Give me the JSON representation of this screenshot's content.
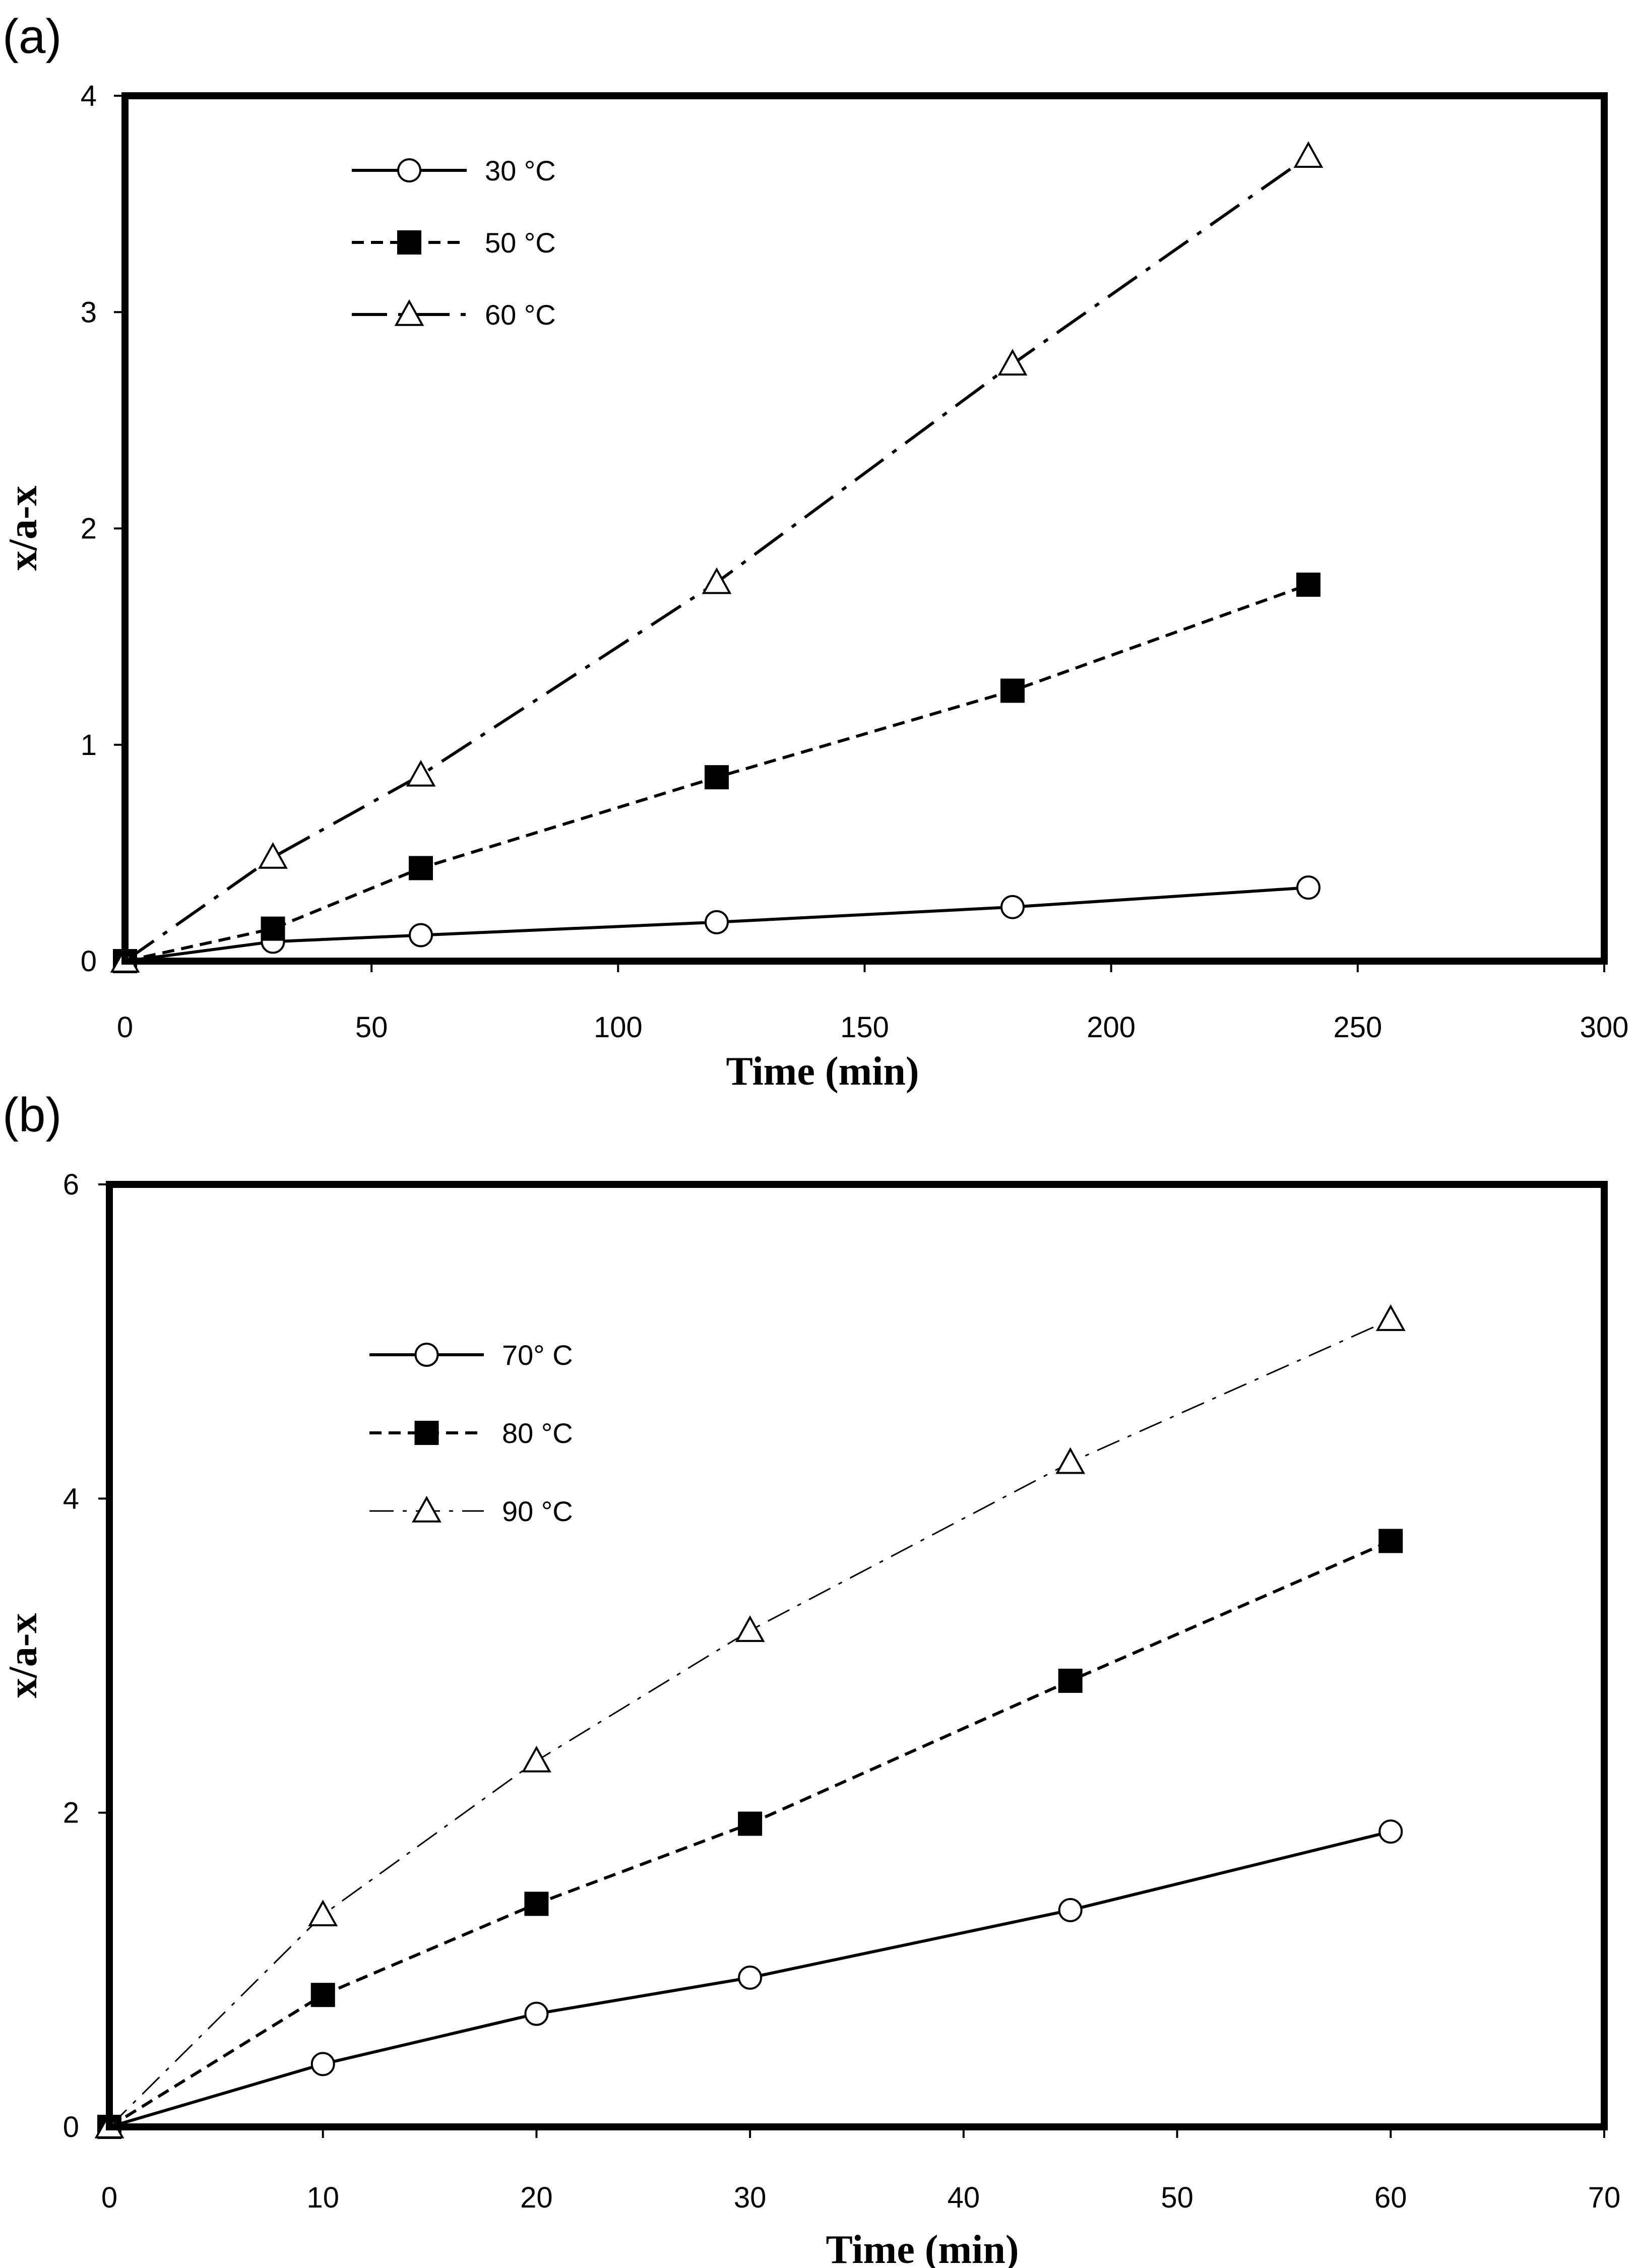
{
  "chart_data": [
    {
      "panel": "(a)",
      "type": "line",
      "xlabel": "Time (min)",
      "ylabel": "x/a-x",
      "xlim": [
        0,
        300
      ],
      "ylim": [
        0,
        4
      ],
      "xticks": [
        "0",
        "50",
        "100",
        "150",
        "200",
        "250",
        "300"
      ],
      "yticks": [
        "0",
        "1",
        "2",
        "3",
        "4"
      ],
      "grid": false,
      "legend_position": "top-left",
      "x": [
        0,
        30,
        60,
        120,
        180,
        240
      ],
      "series": [
        {
          "name": "30 °C",
          "marker": "circle-open",
          "line": "solid",
          "values": [
            0,
            0.09,
            0.12,
            0.18,
            0.25,
            0.34
          ]
        },
        {
          "name": "50 °C",
          "marker": "square-filled",
          "line": "dashed",
          "values": [
            0,
            0.15,
            0.43,
            0.85,
            1.25,
            1.74
          ]
        },
        {
          "name": "60 °C",
          "marker": "triangle-open",
          "line": "dashdot",
          "values": [
            0,
            0.48,
            0.86,
            1.75,
            2.76,
            3.72
          ]
        }
      ]
    },
    {
      "panel": "(b)",
      "type": "line",
      "xlabel": "Time (min)",
      "ylabel": "x/a-x",
      "xlim": [
        0,
        70
      ],
      "ylim": [
        0,
        6
      ],
      "xticks": [
        "0",
        "10",
        "20",
        "30",
        "40",
        "50",
        "60",
        "70"
      ],
      "yticks": [
        "0",
        "2",
        "4",
        "6"
      ],
      "grid": false,
      "legend_position": "top-left",
      "x": [
        0,
        10,
        20,
        30,
        45,
        60
      ],
      "series": [
        {
          "name": "70° C",
          "marker": "circle-open",
          "line": "solid",
          "values": [
            0,
            0.4,
            0.72,
            0.95,
            1.38,
            1.88
          ]
        },
        {
          "name": "80 °C",
          "marker": "square-filled",
          "line": "dashed",
          "values": [
            0,
            0.84,
            1.42,
            1.93,
            2.84,
            3.73
          ]
        },
        {
          "name": "90 °C",
          "marker": "triangle-open",
          "line": "dashdot-thin",
          "values": [
            0,
            1.35,
            2.33,
            3.16,
            4.23,
            5.14
          ]
        }
      ]
    }
  ]
}
